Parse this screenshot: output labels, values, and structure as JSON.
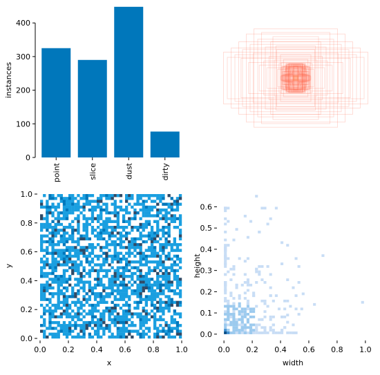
{
  "chart_data": [
    {
      "id": "instances-bar",
      "type": "bar",
      "categories": [
        "point",
        "slice",
        "dust",
        "dirty"
      ],
      "values": [
        325,
        290,
        448,
        77
      ],
      "ylabel": "instances",
      "xlabel": "",
      "ylim": [
        0,
        460
      ],
      "yticks": [
        0,
        100,
        200,
        300,
        400
      ],
      "color": "#0077bb",
      "grid": false
    },
    {
      "id": "box-overlay",
      "type": "scatter",
      "description_kind": "overlaid centered box outlines (width, height) in normalized units",
      "boxes": [
        [
          0.95,
          0.5
        ],
        [
          0.85,
          0.58
        ],
        [
          0.75,
          0.7
        ],
        [
          0.65,
          0.85
        ],
        [
          0.55,
          0.95
        ],
        [
          0.9,
          0.4
        ],
        [
          0.8,
          0.45
        ],
        [
          0.7,
          0.55
        ],
        [
          0.6,
          0.65
        ],
        [
          0.5,
          0.75
        ],
        [
          0.45,
          0.88
        ],
        [
          0.4,
          0.6
        ],
        [
          0.35,
          0.42
        ],
        [
          0.3,
          0.8
        ],
        [
          0.28,
          0.35
        ],
        [
          0.25,
          0.55
        ],
        [
          0.22,
          0.28
        ],
        [
          0.2,
          0.45
        ],
        [
          0.18,
          0.22
        ],
        [
          0.16,
          0.36
        ],
        [
          0.14,
          0.18
        ],
        [
          0.12,
          0.26
        ],
        [
          0.1,
          0.14
        ],
        [
          0.09,
          0.2
        ],
        [
          0.08,
          0.11
        ],
        [
          0.07,
          0.15
        ],
        [
          0.06,
          0.09
        ],
        [
          0.05,
          0.12
        ],
        [
          0.04,
          0.07
        ],
        [
          0.03,
          0.05
        ],
        [
          0.62,
          0.3
        ],
        [
          0.48,
          0.25
        ],
        [
          0.38,
          0.2
        ],
        [
          0.33,
          0.7
        ],
        [
          0.26,
          0.62
        ],
        [
          0.72,
          0.38
        ],
        [
          0.56,
          0.48
        ],
        [
          0.42,
          0.33
        ],
        [
          0.24,
          0.17
        ],
        [
          0.19,
          0.3
        ]
      ],
      "color": "#ff6347",
      "grid": false
    },
    {
      "id": "xy-hist",
      "type": "heatmap",
      "xlabel": "x",
      "ylabel": "y",
      "xlim": [
        0,
        1
      ],
      "ylim": [
        0,
        1
      ],
      "xticks": [
        0.0,
        0.2,
        0.4,
        0.6,
        0.8,
        1.0
      ],
      "yticks": [
        0.0,
        0.2,
        0.4,
        0.6,
        0.8,
        1.0
      ],
      "bins": 50,
      "cmap": [
        "#ffffff",
        "#1a9fe0",
        "#0077bb",
        "#304a66"
      ],
      "grid": false
    },
    {
      "id": "wh-hist",
      "type": "heatmap",
      "xlabel": "width",
      "ylabel": "height",
      "xlim": [
        -0.03,
        1.03
      ],
      "ylim": [
        -0.02,
        0.66
      ],
      "xticks": [
        0.0,
        0.2,
        0.4,
        0.6,
        0.8,
        1.0
      ],
      "yticks": [
        0.0,
        0.1,
        0.2,
        0.3,
        0.4,
        0.5,
        0.6
      ],
      "cmap": [
        "#c8ddf5",
        "#9ccaee",
        "#3f8fd0",
        "#0b4e86"
      ],
      "grid": false
    }
  ]
}
